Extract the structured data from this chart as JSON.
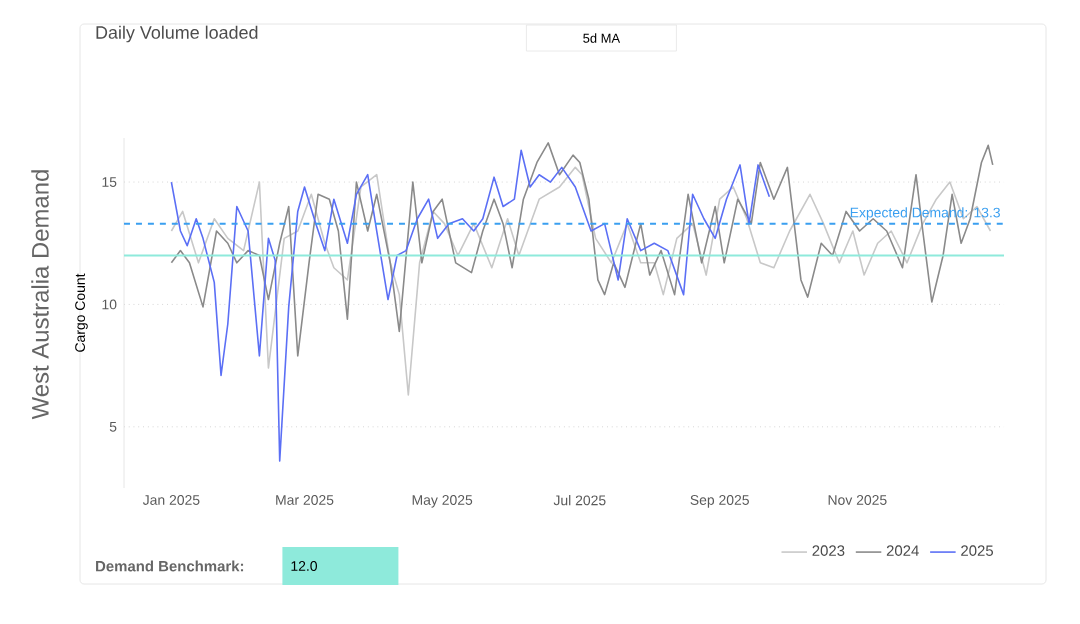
{
  "chart_data": {
    "type": "line",
    "title": "West Australia Demand",
    "subtitle": "Daily Volume loaded",
    "ylabel": "Cargo Count",
    "annotations": [
      "5d MA",
      "Demand Benchmark:",
      "12.0"
    ],
    "xlim": [
      "2024-12-11",
      "2026-01-05"
    ],
    "xticks": [
      {
        "value": "2025-01-01",
        "label": "Jan 2025"
      },
      {
        "value": "2025-03-01",
        "label": "Mar 2025"
      },
      {
        "value": "2025-05-01",
        "label": "May 2025"
      },
      {
        "value": "2025-07-01",
        "label": "Jul 2025"
      },
      {
        "value": "2025-09-01",
        "label": "Sep 2025"
      },
      {
        "value": "2025-11-01",
        "label": "Nov 2025"
      }
    ],
    "ylim": [
      2.5,
      16.8
    ],
    "yticks": [
      5,
      10,
      15
    ],
    "grid": "y",
    "legend": "bottom right",
    "marker": "none",
    "line_style": "solid",
    "ref_lines": [
      {
        "axis": "y",
        "value": 12.0,
        "label": null,
        "color": "#8eeadb",
        "line_style": "solid"
      },
      {
        "axis": "y",
        "value": 13.3,
        "label": "Expected Demand: 13.3",
        "color": "#3a9ff0",
        "line_style": "dashed"
      }
    ],
    "series": [
      {
        "name": "2023",
        "color": "#c8c8c8",
        "x": [
          "2025-01-01",
          "2025-01-06",
          "2025-01-13",
          "2025-01-20",
          "2025-01-26",
          "2025-02-02",
          "2025-02-09",
          "2025-02-13",
          "2025-02-20",
          "2025-02-26",
          "2025-03-04",
          "2025-03-10",
          "2025-03-14",
          "2025-03-20",
          "2025-03-26",
          "2025-04-02",
          "2025-04-08",
          "2025-04-12",
          "2025-04-16",
          "2025-04-21",
          "2025-04-27",
          "2025-05-02",
          "2025-05-08",
          "2025-05-15",
          "2025-05-23",
          "2025-05-30",
          "2025-06-04",
          "2025-06-13",
          "2025-06-22",
          "2025-06-29",
          "2025-07-02",
          "2025-07-08",
          "2025-07-15",
          "2025-07-22",
          "2025-07-28",
          "2025-08-03",
          "2025-08-07",
          "2025-08-13",
          "2025-08-20",
          "2025-08-26",
          "2025-09-01",
          "2025-09-07",
          "2025-09-13",
          "2025-09-19",
          "2025-09-25",
          "2025-10-02",
          "2025-10-11",
          "2025-10-17",
          "2025-10-24",
          "2025-10-30",
          "2025-11-04",
          "2025-11-10",
          "2025-11-16",
          "2025-11-23",
          "2025-11-30",
          "2025-12-06",
          "2025-12-12",
          "2025-12-18",
          "2025-12-24",
          "2025-12-30"
        ],
        "values": [
          13.0,
          13.8,
          11.7,
          13.5,
          12.7,
          12.2,
          15.0,
          7.4,
          12.7,
          13.0,
          14.5,
          12.5,
          11.5,
          11.0,
          14.8,
          15.3,
          11.7,
          10.4,
          6.3,
          11.7,
          13.8,
          13.3,
          12.0,
          13.3,
          11.5,
          13.5,
          12.0,
          14.3,
          14.8,
          15.6,
          15.3,
          12.7,
          11.7,
          13.3,
          11.7,
          11.7,
          10.4,
          12.7,
          13.3,
          11.2,
          14.3,
          14.8,
          13.5,
          11.7,
          11.5,
          13.0,
          14.5,
          13.3,
          11.7,
          13.0,
          11.2,
          12.5,
          13.0,
          11.7,
          13.3,
          14.3,
          15.0,
          13.5,
          14.0,
          13.0
        ]
      },
      {
        "name": "2024",
        "color": "#8a8a8a",
        "x": [
          "2025-01-01",
          "2025-01-05",
          "2025-01-09",
          "2025-01-15",
          "2025-01-21",
          "2025-01-26",
          "2025-01-30",
          "2025-02-04",
          "2025-02-09",
          "2025-02-13",
          "2025-02-18",
          "2025-02-22",
          "2025-02-26",
          "2025-03-03",
          "2025-03-07",
          "2025-03-12",
          "2025-03-16",
          "2025-03-20",
          "2025-03-24",
          "2025-03-29",
          "2025-04-02",
          "2025-04-08",
          "2025-04-12",
          "2025-04-18",
          "2025-04-22",
          "2025-04-27",
          "2025-05-01",
          "2025-05-07",
          "2025-05-14",
          "2025-05-19",
          "2025-05-24",
          "2025-05-28",
          "2025-06-01",
          "2025-06-06",
          "2025-06-12",
          "2025-06-17",
          "2025-06-22",
          "2025-06-28",
          "2025-07-01",
          "2025-07-05",
          "2025-07-09",
          "2025-07-12",
          "2025-07-16",
          "2025-07-21",
          "2025-07-28",
          "2025-08-01",
          "2025-08-06",
          "2025-08-12",
          "2025-08-18",
          "2025-08-24",
          "2025-08-30",
          "2025-09-03",
          "2025-09-09",
          "2025-09-15",
          "2025-09-19",
          "2025-09-25",
          "2025-10-01",
          "2025-10-07",
          "2025-10-10",
          "2025-10-16",
          "2025-10-21",
          "2025-10-27",
          "2025-11-02",
          "2025-11-08",
          "2025-11-14",
          "2025-11-21",
          "2025-11-27",
          "2025-11-30",
          "2025-12-04",
          "2025-12-09",
          "2025-12-13",
          "2025-12-17",
          "2025-12-21",
          "2025-12-26",
          "2025-12-29",
          "2025-12-31"
        ],
        "values": [
          11.7,
          12.2,
          11.7,
          9.9,
          13.0,
          12.5,
          11.7,
          12.2,
          12.0,
          10.2,
          12.5,
          14.0,
          7.9,
          11.7,
          14.5,
          14.3,
          13.0,
          9.4,
          15.0,
          13.0,
          14.5,
          11.7,
          8.9,
          15.0,
          11.7,
          13.8,
          14.3,
          11.7,
          11.3,
          13.0,
          14.3,
          13.3,
          11.5,
          14.3,
          15.8,
          16.6,
          15.3,
          16.1,
          15.8,
          14.3,
          11.0,
          10.4,
          11.7,
          10.7,
          13.3,
          11.2,
          12.2,
          10.4,
          14.5,
          11.7,
          14.0,
          11.7,
          14.3,
          13.3,
          15.8,
          14.3,
          15.6,
          11.0,
          10.3,
          12.5,
          12.0,
          13.8,
          13.0,
          13.5,
          13.0,
          11.5,
          15.3,
          13.0,
          10.1,
          12.0,
          14.5,
          12.5,
          13.5,
          15.8,
          16.5,
          15.7
        ]
      },
      {
        "name": "2025",
        "color": "#5b6ff5",
        "x": [
          "2025-01-01",
          "2025-01-05",
          "2025-01-08",
          "2025-01-12",
          "2025-01-15",
          "2025-01-20",
          "2025-01-23",
          "2025-01-26",
          "2025-01-30",
          "2025-02-04",
          "2025-02-09",
          "2025-02-13",
          "2025-02-16",
          "2025-02-18",
          "2025-02-22",
          "2025-02-26",
          "2025-03-01",
          "2025-03-06",
          "2025-03-10",
          "2025-03-14",
          "2025-03-20",
          "2025-03-24",
          "2025-03-29",
          "2025-04-02",
          "2025-04-07",
          "2025-04-11",
          "2025-04-15",
          "2025-04-20",
          "2025-04-25",
          "2025-04-29",
          "2025-05-04",
          "2025-05-10",
          "2025-05-15",
          "2025-05-19",
          "2025-05-24",
          "2025-05-28",
          "2025-06-02",
          "2025-06-05",
          "2025-06-09",
          "2025-06-13",
          "2025-06-18",
          "2025-06-23",
          "2025-06-29",
          "2025-07-06",
          "2025-07-12",
          "2025-07-18",
          "2025-07-22",
          "2025-07-28",
          "2025-08-03",
          "2025-08-09",
          "2025-08-16",
          "2025-08-20",
          "2025-08-25",
          "2025-08-30",
          "2025-09-04",
          "2025-09-10",
          "2025-09-14",
          "2025-09-18",
          "2025-09-23"
        ],
        "values": [
          15.0,
          13.0,
          12.4,
          13.5,
          12.7,
          10.9,
          7.1,
          9.2,
          14.0,
          13.0,
          7.9,
          12.7,
          11.8,
          3.6,
          9.9,
          13.8,
          14.8,
          13.3,
          12.2,
          14.3,
          12.5,
          14.5,
          15.3,
          13.0,
          10.2,
          12.0,
          12.2,
          13.5,
          14.3,
          12.7,
          13.3,
          13.5,
          13.0,
          13.5,
          15.2,
          14.0,
          14.3,
          16.3,
          14.8,
          15.3,
          15.0,
          15.6,
          14.8,
          13.0,
          13.3,
          11.0,
          13.5,
          12.2,
          12.5,
          12.2,
          10.4,
          14.5,
          13.5,
          12.7,
          14.3,
          15.7,
          13.3,
          15.7,
          14.4
        ]
      }
    ]
  }
}
